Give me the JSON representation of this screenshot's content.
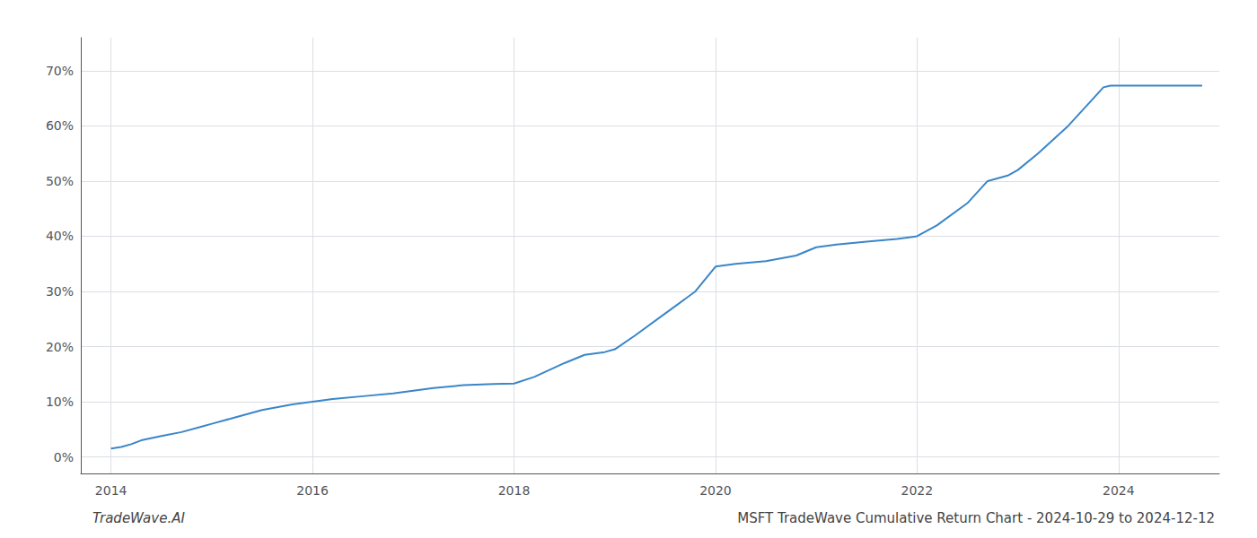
{
  "chart_data": {
    "type": "line",
    "title": "MSFT TradeWave Cumulative Return Chart - 2024-10-29 to 2024-12-12",
    "annotations": [
      "TradeWave.AI"
    ],
    "color": "#3a86c8",
    "x": [
      2014.0,
      2014.1,
      2014.2,
      2014.3,
      2014.5,
      2014.7,
      2014.9,
      2015.0,
      2015.2,
      2015.5,
      2015.8,
      2016.0,
      2016.2,
      2016.5,
      2016.8,
      2017.0,
      2017.2,
      2017.5,
      2017.8,
      2018.0,
      2018.2,
      2018.5,
      2018.7,
      2018.9,
      2019.0,
      2019.2,
      2019.5,
      2019.8,
      2020.0,
      2020.2,
      2020.5,
      2020.8,
      2021.0,
      2021.2,
      2021.5,
      2021.8,
      2022.0,
      2022.2,
      2022.5,
      2022.7,
      2022.9,
      2023.0,
      2023.2,
      2023.5,
      2023.7,
      2023.85,
      2023.92,
      2024.0,
      2024.2,
      2024.5,
      2024.83
    ],
    "values": [
      1.5,
      1.8,
      2.3,
      3.0,
      3.8,
      4.5,
      5.5,
      6.0,
      7.0,
      8.5,
      9.5,
      10.0,
      10.5,
      11.0,
      11.5,
      12.0,
      12.5,
      13.0,
      13.2,
      13.3,
      14.5,
      17.0,
      18.5,
      19.0,
      19.5,
      22.0,
      26.0,
      30.0,
      34.5,
      35.0,
      35.5,
      36.5,
      38.0,
      38.5,
      39.0,
      39.5,
      40.0,
      42.0,
      46.0,
      50.0,
      51.0,
      52.0,
      55.0,
      60.0,
      64.0,
      67.0,
      67.3,
      67.3,
      67.3,
      67.3,
      67.3
    ],
    "xlim": [
      2013.7,
      2025.0
    ],
    "xticks": [
      2014,
      2016,
      2018,
      2020,
      2022,
      2024
    ],
    "ylim": [
      -3,
      76
    ],
    "yticks": [
      {
        "value": 0,
        "label": "0%"
      },
      {
        "value": 10,
        "label": "10%"
      },
      {
        "value": 20,
        "label": "20%"
      },
      {
        "value": 30,
        "label": "30%"
      },
      {
        "value": 40,
        "label": "40%"
      },
      {
        "value": 50,
        "label": "50%"
      },
      {
        "value": 60,
        "label": "60%"
      },
      {
        "value": 70,
        "label": "70%"
      }
    ],
    "grid": true
  }
}
